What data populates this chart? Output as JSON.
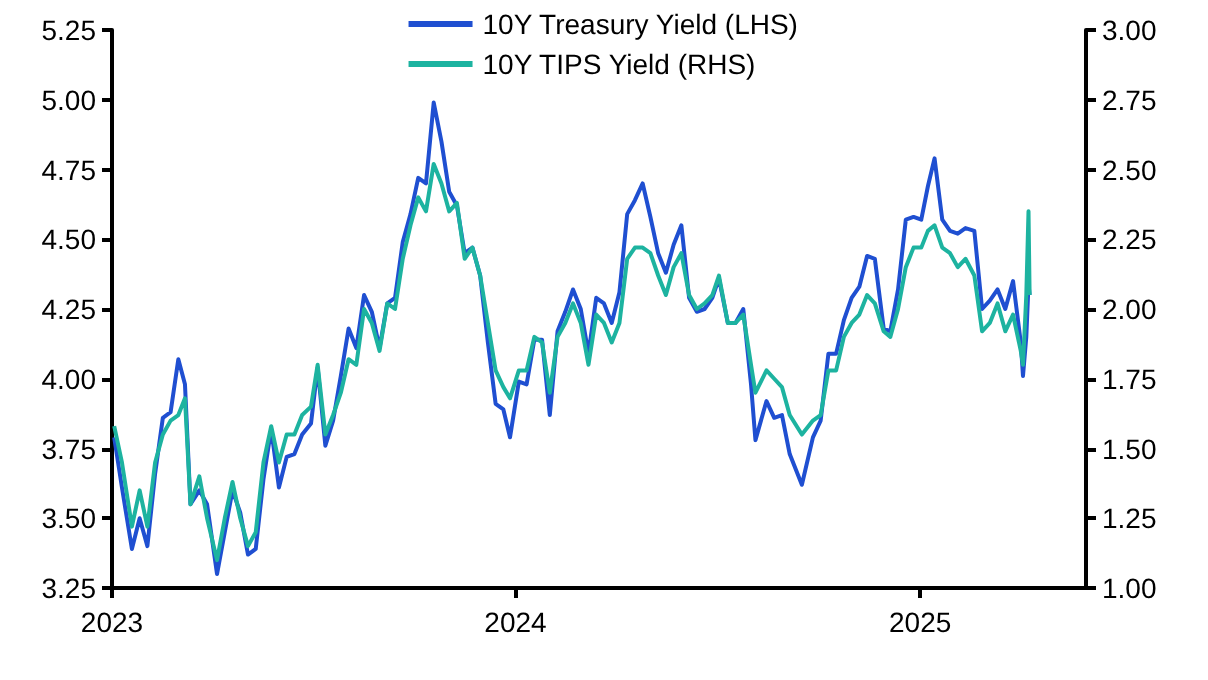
{
  "chart_data": {
    "type": "line",
    "xlim": [
      "2023-01-01",
      "2025-05-31"
    ],
    "xticks": [
      "2023",
      "2024",
      "2025"
    ],
    "ylim": [
      3.25,
      5.25
    ],
    "yticks": [
      {
        "value": 3.25,
        "label": "3.25"
      },
      {
        "value": 3.5,
        "label": "3.50"
      },
      {
        "value": 3.75,
        "label": "3.75"
      },
      {
        "value": 4,
        "label": "4.00"
      },
      {
        "value": 4.25,
        "label": "4.25"
      },
      {
        "value": 4.5,
        "label": "4.50"
      },
      {
        "value": 4.75,
        "label": "4.75"
      },
      {
        "value": 5,
        "label": "5.00"
      },
      {
        "value": 5.25,
        "label": "5.25"
      }
    ],
    "y2lim": [
      1.0,
      3.0
    ],
    "y2ticks": [
      {
        "value": 1,
        "label": "1.00"
      },
      {
        "value": 1.25,
        "label": "1.25"
      },
      {
        "value": 1.5,
        "label": "1.50"
      },
      {
        "value": 1.75,
        "label": "1.75"
      },
      {
        "value": 2,
        "label": "2.00"
      },
      {
        "value": 2.25,
        "label": "2.25"
      },
      {
        "value": 2.5,
        "label": "2.50"
      },
      {
        "value": 2.75,
        "label": "2.75"
      },
      {
        "value": 3,
        "label": "3.00"
      }
    ],
    "legend": "top",
    "grid": false,
    "marker": "none",
    "series": [
      {
        "name": "10Y Treasury Yield (LHS)",
        "color": "#1f4fd1",
        "x": [
          "2023-01-03",
          "2023-01-10",
          "2023-01-19",
          "2023-01-26",
          "2023-02-02",
          "2023-02-09",
          "2023-02-16",
          "2023-02-23",
          "2023-03-02",
          "2023-03-08",
          "2023-03-13",
          "2023-03-21",
          "2023-03-28",
          "2023-04-06",
          "2023-04-13",
          "2023-04-20",
          "2023-04-27",
          "2023-05-04",
          "2023-05-11",
          "2023-05-18",
          "2023-05-25",
          "2023-06-01",
          "2023-06-08",
          "2023-06-15",
          "2023-06-22",
          "2023-06-30",
          "2023-07-06",
          "2023-07-13",
          "2023-07-20",
          "2023-07-27",
          "2023-08-03",
          "2023-08-10",
          "2023-08-17",
          "2023-08-24",
          "2023-08-31",
          "2023-09-07",
          "2023-09-14",
          "2023-09-21",
          "2023-09-28",
          "2023-10-05",
          "2023-10-12",
          "2023-10-19",
          "2023-10-26",
          "2023-11-02",
          "2023-11-09",
          "2023-11-16",
          "2023-11-23",
          "2023-11-30",
          "2023-12-07",
          "2023-12-14",
          "2023-12-21",
          "2023-12-27",
          "2024-01-04",
          "2024-01-11",
          "2024-01-18",
          "2024-01-25",
          "2024-02-01",
          "2024-02-08",
          "2024-02-15",
          "2024-02-22",
          "2024-02-29",
          "2024-03-07",
          "2024-03-14",
          "2024-03-21",
          "2024-03-28",
          "2024-04-04",
          "2024-04-11",
          "2024-04-18",
          "2024-04-25",
          "2024-05-02",
          "2024-05-09",
          "2024-05-16",
          "2024-05-23",
          "2024-05-30",
          "2024-06-06",
          "2024-06-13",
          "2024-06-20",
          "2024-06-27",
          "2024-07-03",
          "2024-07-11",
          "2024-07-18",
          "2024-07-25",
          "2024-08-01",
          "2024-08-05",
          "2024-08-15",
          "2024-08-22",
          "2024-08-29",
          "2024-09-05",
          "2024-09-16",
          "2024-09-26",
          "2024-10-03",
          "2024-10-10",
          "2024-10-17",
          "2024-10-24",
          "2024-10-31",
          "2024-11-07",
          "2024-11-14",
          "2024-11-21",
          "2024-11-29",
          "2024-12-05",
          "2024-12-12",
          "2024-12-19",
          "2024-12-26",
          "2025-01-02",
          "2025-01-08",
          "2025-01-14",
          "2025-01-21",
          "2025-01-28",
          "2025-02-04",
          "2025-02-11",
          "2025-02-19",
          "2025-02-26",
          "2025-03-05",
          "2025-03-12",
          "2025-03-19",
          "2025-03-26",
          "2025-04-02",
          "2025-04-04",
          "2025-04-07",
          "2025-04-09",
          "2025-04-10"
        ],
        "values": [
          3.79,
          3.61,
          3.39,
          3.5,
          3.4,
          3.66,
          3.86,
          3.88,
          4.07,
          3.98,
          3.55,
          3.6,
          3.55,
          3.3,
          3.45,
          3.6,
          3.52,
          3.37,
          3.39,
          3.64,
          3.82,
          3.61,
          3.72,
          3.73,
          3.8,
          3.84,
          4.04,
          3.76,
          3.85,
          4.01,
          4.18,
          4.11,
          4.3,
          4.24,
          4.11,
          4.27,
          4.29,
          4.49,
          4.59,
          4.72,
          4.7,
          4.99,
          4.85,
          4.67,
          4.62,
          4.45,
          4.47,
          4.37,
          4.13,
          3.91,
          3.89,
          3.79,
          3.99,
          3.98,
          4.14,
          4.14,
          3.87,
          4.17,
          4.24,
          4.32,
          4.25,
          4.09,
          4.29,
          4.27,
          4.2,
          4.31,
          4.59,
          4.64,
          4.7,
          4.58,
          4.45,
          4.38,
          4.48,
          4.55,
          4.29,
          4.24,
          4.25,
          4.29,
          4.36,
          4.2,
          4.2,
          4.25,
          3.98,
          3.78,
          3.92,
          3.86,
          3.87,
          3.73,
          3.62,
          3.79,
          3.85,
          4.09,
          4.09,
          4.21,
          4.29,
          4.33,
          4.44,
          4.43,
          4.18,
          4.17,
          4.32,
          4.57,
          4.58,
          4.57,
          4.69,
          4.79,
          4.57,
          4.53,
          4.52,
          4.54,
          4.53,
          4.25,
          4.28,
          4.32,
          4.25,
          4.35,
          4.13,
          4.01,
          4.15,
          4.34,
          4.3
        ]
      },
      {
        "name": "10Y TIPS Yield (RHS)",
        "color": "#1db3a0",
        "axis": "y2",
        "x": [
          "2023-01-03",
          "2023-01-10",
          "2023-01-19",
          "2023-01-26",
          "2023-02-02",
          "2023-02-09",
          "2023-02-16",
          "2023-02-23",
          "2023-03-02",
          "2023-03-08",
          "2023-03-13",
          "2023-03-21",
          "2023-03-28",
          "2023-04-06",
          "2023-04-13",
          "2023-04-20",
          "2023-04-27",
          "2023-05-04",
          "2023-05-11",
          "2023-05-18",
          "2023-05-25",
          "2023-06-01",
          "2023-06-08",
          "2023-06-15",
          "2023-06-22",
          "2023-06-30",
          "2023-07-06",
          "2023-07-13",
          "2023-07-20",
          "2023-07-27",
          "2023-08-03",
          "2023-08-10",
          "2023-08-17",
          "2023-08-24",
          "2023-08-31",
          "2023-09-07",
          "2023-09-14",
          "2023-09-21",
          "2023-09-28",
          "2023-10-05",
          "2023-10-12",
          "2023-10-19",
          "2023-10-26",
          "2023-11-02",
          "2023-11-09",
          "2023-11-16",
          "2023-11-23",
          "2023-11-30",
          "2023-12-07",
          "2023-12-14",
          "2023-12-21",
          "2023-12-27",
          "2024-01-04",
          "2024-01-11",
          "2024-01-18",
          "2024-01-25",
          "2024-02-01",
          "2024-02-08",
          "2024-02-15",
          "2024-02-22",
          "2024-02-29",
          "2024-03-07",
          "2024-03-14",
          "2024-03-21",
          "2024-03-28",
          "2024-04-04",
          "2024-04-11",
          "2024-04-18",
          "2024-04-25",
          "2024-05-02",
          "2024-05-09",
          "2024-05-16",
          "2024-05-23",
          "2024-05-30",
          "2024-06-06",
          "2024-06-13",
          "2024-06-20",
          "2024-06-27",
          "2024-07-03",
          "2024-07-11",
          "2024-07-18",
          "2024-07-25",
          "2024-08-01",
          "2024-08-05",
          "2024-08-15",
          "2024-08-22",
          "2024-08-29",
          "2024-09-05",
          "2024-09-16",
          "2024-09-26",
          "2024-10-03",
          "2024-10-10",
          "2024-10-17",
          "2024-10-24",
          "2024-10-31",
          "2024-11-07",
          "2024-11-14",
          "2024-11-21",
          "2024-11-29",
          "2024-12-05",
          "2024-12-12",
          "2024-12-19",
          "2024-12-26",
          "2025-01-02",
          "2025-01-08",
          "2025-01-14",
          "2025-01-21",
          "2025-01-28",
          "2025-02-04",
          "2025-02-11",
          "2025-02-19",
          "2025-02-26",
          "2025-03-05",
          "2025-03-12",
          "2025-03-19",
          "2025-03-26",
          "2025-04-02",
          "2025-04-04",
          "2025-04-07",
          "2025-04-09",
          "2025-04-10"
        ],
        "values": [
          1.58,
          1.45,
          1.22,
          1.35,
          1.22,
          1.45,
          1.55,
          1.6,
          1.62,
          1.68,
          1.3,
          1.4,
          1.25,
          1.1,
          1.25,
          1.38,
          1.25,
          1.15,
          1.2,
          1.45,
          1.58,
          1.45,
          1.55,
          1.55,
          1.62,
          1.65,
          1.8,
          1.55,
          1.62,
          1.7,
          1.82,
          1.8,
          2.0,
          1.95,
          1.85,
          2.02,
          2.0,
          2.18,
          2.3,
          2.4,
          2.35,
          2.52,
          2.45,
          2.35,
          2.38,
          2.18,
          2.22,
          2.12,
          1.95,
          1.78,
          1.72,
          1.68,
          1.78,
          1.78,
          1.9,
          1.88,
          1.7,
          1.9,
          1.95,
          2.02,
          1.95,
          1.8,
          1.98,
          1.95,
          1.88,
          1.95,
          2.18,
          2.22,
          2.22,
          2.2,
          2.12,
          2.05,
          2.15,
          2.2,
          2.05,
          2.0,
          2.02,
          2.05,
          2.12,
          1.95,
          1.95,
          1.98,
          1.8,
          1.7,
          1.78,
          1.75,
          1.72,
          1.62,
          1.55,
          1.6,
          1.62,
          1.78,
          1.78,
          1.9,
          1.95,
          1.98,
          2.05,
          2.02,
          1.92,
          1.9,
          2.0,
          2.15,
          2.22,
          2.22,
          2.28,
          2.3,
          2.22,
          2.2,
          2.15,
          2.18,
          2.12,
          1.92,
          1.95,
          2.02,
          1.92,
          1.98,
          1.85,
          1.8,
          2.05,
          2.35,
          2.05
        ]
      }
    ]
  }
}
